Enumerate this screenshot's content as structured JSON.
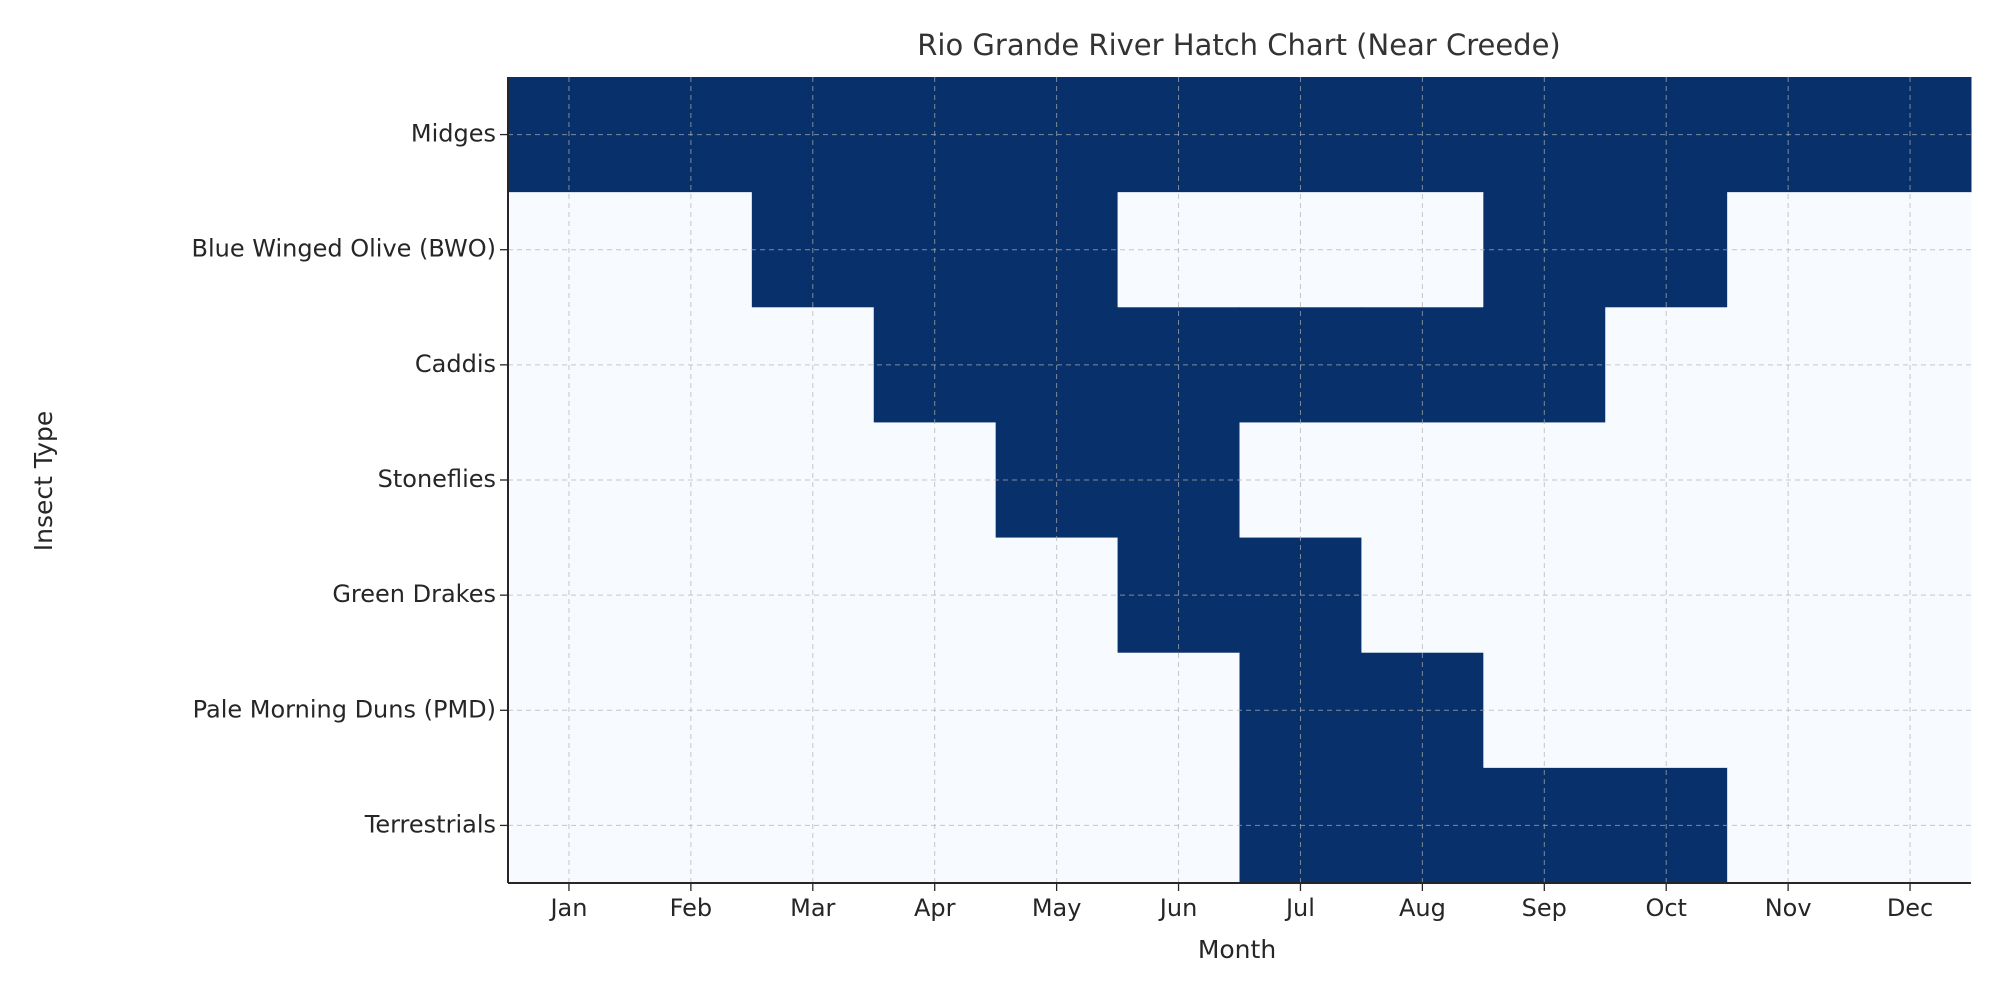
{
  "chart_data": {
    "type": "heatmap",
    "title": "Rio Grande River Hatch Chart (Near Creede)",
    "xlabel": "Month",
    "ylabel": "Insect Type",
    "x_categories": [
      "Jan",
      "Feb",
      "Mar",
      "Apr",
      "May",
      "Jun",
      "Jul",
      "Aug",
      "Sep",
      "Oct",
      "Nov",
      "Dec"
    ],
    "y_categories": [
      "Midges",
      "Blue Winged Olive (BWO)",
      "Caddis",
      "Stoneflies",
      "Green Drakes",
      "Pale Morning Duns (PMD)",
      "Terrestrials"
    ],
    "values": [
      [
        1,
        1,
        1,
        1,
        1,
        1,
        1,
        1,
        1,
        1,
        1,
        1
      ],
      [
        0,
        0,
        1,
        1,
        1,
        0,
        0,
        0,
        1,
        1,
        0,
        0
      ],
      [
        0,
        0,
        0,
        1,
        1,
        1,
        1,
        1,
        1,
        0,
        0,
        0
      ],
      [
        0,
        0,
        0,
        0,
        1,
        1,
        0,
        0,
        0,
        0,
        0,
        0
      ],
      [
        0,
        0,
        0,
        0,
        0,
        1,
        1,
        0,
        0,
        0,
        0,
        0
      ],
      [
        0,
        0,
        0,
        0,
        0,
        0,
        1,
        1,
        0,
        0,
        0,
        0
      ],
      [
        0,
        0,
        0,
        0,
        0,
        0,
        1,
        1,
        1,
        1,
        0,
        0
      ]
    ],
    "color_low": "#f7fbff",
    "color_high": "#08306b",
    "grid": true
  }
}
